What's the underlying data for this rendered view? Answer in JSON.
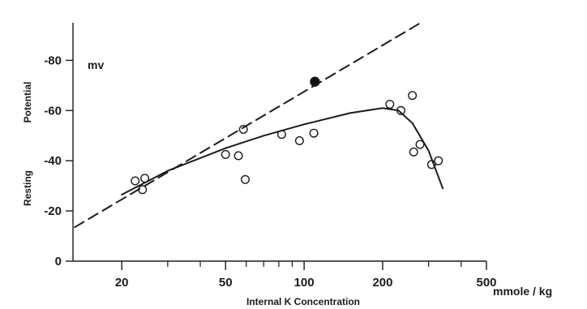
{
  "chart_data": {
    "type": "scatter",
    "title": "",
    "xlabel": "Internal K Concentration",
    "xunit": "mmole / kg",
    "ylabel_left": "Resting",
    "ylabel_right": "Potential",
    "yunit": "mv",
    "x_scale": "log",
    "xlim": [
      13,
      500
    ],
    "ylim": [
      0,
      -95
    ],
    "x_ticks": [
      20,
      50,
      100,
      200,
      500
    ],
    "x_tick_labels": [
      "20",
      "50",
      "100",
      "200",
      "500"
    ],
    "x_minor_ticks": [
      30,
      40,
      60,
      70,
      80,
      90,
      300,
      400
    ],
    "y_ticks": [
      0,
      -20,
      -40,
      -60,
      -80
    ],
    "y_tick_labels": [
      "0",
      "-20",
      "-40",
      "-60",
      "-80"
    ],
    "grid": false,
    "series": [
      {
        "marker": "open-circle",
        "points": [
          {
            "x": 22.5,
            "y": -32
          },
          {
            "x": 24,
            "y": -28.5
          },
          {
            "x": 24.5,
            "y": -33
          },
          {
            "x": 50,
            "y": -42.5
          },
          {
            "x": 56,
            "y": -42
          },
          {
            "x": 58.5,
            "y": -52.5
          },
          {
            "x": 59.5,
            "y": -32.5
          },
          {
            "x": 82,
            "y": -50.5
          },
          {
            "x": 96,
            "y": -48
          },
          {
            "x": 109,
            "y": -51
          },
          {
            "x": 213,
            "y": -62.5
          },
          {
            "x": 235,
            "y": -60
          },
          {
            "x": 260,
            "y": -66
          },
          {
            "x": 263,
            "y": -43.5
          },
          {
            "x": 278,
            "y": -46.5
          },
          {
            "x": 308,
            "y": -38.5
          },
          {
            "x": 327,
            "y": -40
          }
        ]
      },
      {
        "marker": "filled-circle",
        "points": [
          {
            "x": 110,
            "y": -71.5
          }
        ]
      },
      {
        "line": "solid",
        "points": [
          {
            "x": 20,
            "y": -26.5
          },
          {
            "x": 30,
            "y": -36
          },
          {
            "x": 50,
            "y": -45
          },
          {
            "x": 70,
            "y": -50
          },
          {
            "x": 100,
            "y": -54.5
          },
          {
            "x": 150,
            "y": -59
          },
          {
            "x": 200,
            "y": -61
          },
          {
            "x": 230,
            "y": -60
          },
          {
            "x": 260,
            "y": -55
          },
          {
            "x": 300,
            "y": -44
          },
          {
            "x": 340,
            "y": -29
          }
        ]
      },
      {
        "line": "dashed",
        "points": [
          {
            "x": 13.2,
            "y": -13.5
          },
          {
            "x": 280,
            "y": -95
          }
        ]
      }
    ]
  }
}
